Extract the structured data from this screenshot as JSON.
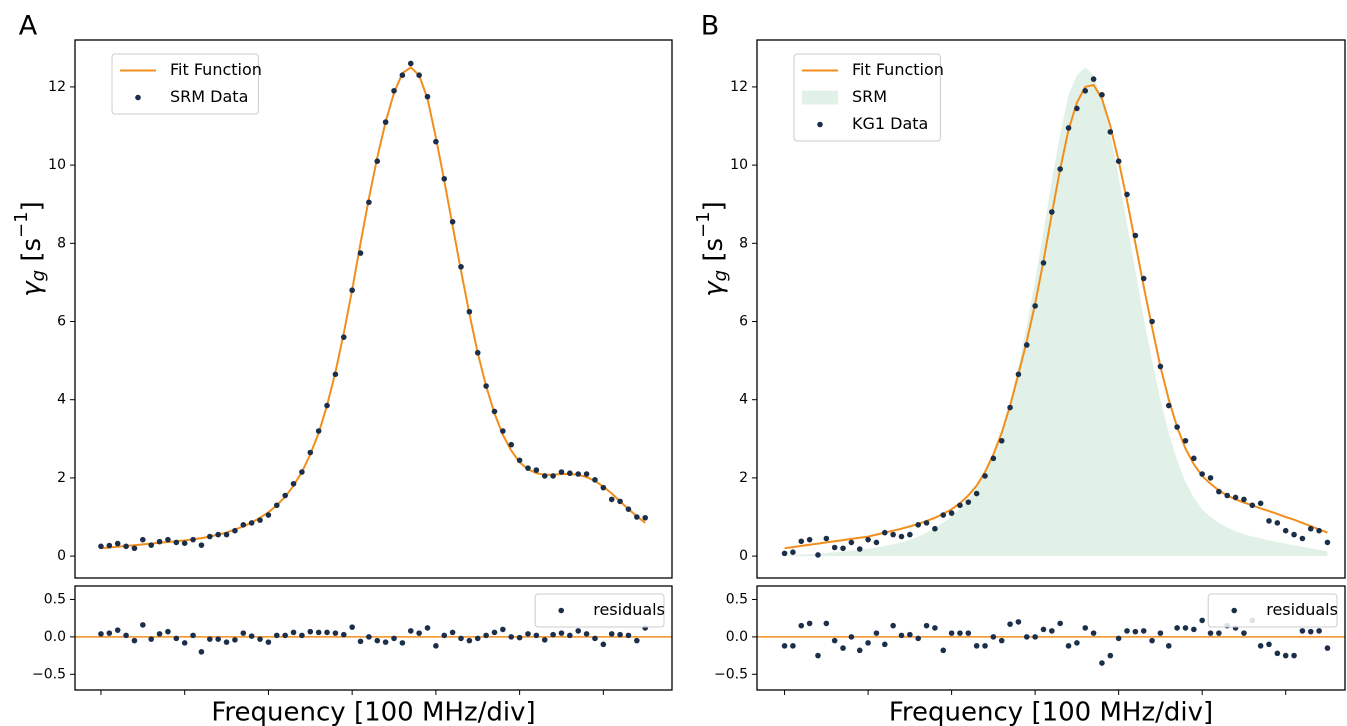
{
  "chart_data": [
    {
      "type": "line",
      "panel_label": "A",
      "ylabel": [
        "γ",
        "g",
        " [s",
        "−1",
        "]"
      ],
      "x": [
        0,
        1,
        2,
        3,
        4,
        5,
        6,
        7,
        8,
        9,
        10,
        11,
        12,
        13,
        14,
        15,
        16,
        17,
        18,
        19,
        20,
        21,
        22,
        23,
        24,
        25,
        26,
        27,
        28,
        29,
        30,
        31,
        32,
        33,
        34,
        35,
        36,
        37,
        38,
        39,
        40,
        41,
        42,
        43,
        44,
        45,
        46,
        47,
        48,
        49,
        50,
        51,
        52,
        53,
        54,
        55,
        56,
        57,
        58,
        59,
        60,
        61,
        62,
        63,
        64,
        65
      ],
      "xlim": [
        -3.1,
        68.2
      ],
      "ylim": [
        -0.56,
        13.2
      ],
      "yticks": [
        0,
        2,
        4,
        6,
        8,
        10,
        12
      ],
      "legend": "upper left",
      "series": [
        {
          "name": "Fit Function",
          "type": "line",
          "color": "#f28e1c",
          "values": [
            0.2,
            0.22,
            0.24,
            0.26,
            0.28,
            0.3,
            0.32,
            0.34,
            0.36,
            0.38,
            0.4,
            0.43,
            0.46,
            0.5,
            0.55,
            0.6,
            0.68,
            0.76,
            0.86,
            0.98,
            1.12,
            1.3,
            1.52,
            1.8,
            2.15,
            2.6,
            3.15,
            3.85,
            4.7,
            5.7,
            6.8,
            8.0,
            9.15,
            10.2,
            11.1,
            11.85,
            12.35,
            12.5,
            12.3,
            11.7,
            10.7,
            9.6,
            8.45,
            7.3,
            6.2,
            5.2,
            4.35,
            3.65,
            3.1,
            2.7,
            2.4,
            2.22,
            2.12,
            2.08,
            2.08,
            2.1,
            2.1,
            2.08,
            2.02,
            1.92,
            1.78,
            1.6,
            1.4,
            1.2,
            1.02,
            0.85
          ]
        },
        {
          "name": "SRM Data",
          "type": "scatter",
          "color": "#1b2f4b",
          "values": [
            0.25,
            0.27,
            0.32,
            0.25,
            0.2,
            0.42,
            0.28,
            0.37,
            0.42,
            0.35,
            0.33,
            0.42,
            0.28,
            0.5,
            0.55,
            0.55,
            0.65,
            0.8,
            0.85,
            0.92,
            1.05,
            1.3,
            1.55,
            1.85,
            2.15,
            2.65,
            3.2,
            3.85,
            4.65,
            5.6,
            6.8,
            7.75,
            9.05,
            10.1,
            11.1,
            11.9,
            12.3,
            12.6,
            12.3,
            11.75,
            10.6,
            9.65,
            8.55,
            7.4,
            6.25,
            5.2,
            4.35,
            3.7,
            3.2,
            2.85,
            2.45,
            2.25,
            2.2,
            2.05,
            2.05,
            2.15,
            2.12,
            2.1,
            2.1,
            1.95,
            1.75,
            1.45,
            1.4,
            1.2,
            1.0,
            0.98
          ]
        }
      ]
    },
    {
      "type": "scatter",
      "xlabel": "Frequency [100 MHz/div]",
      "x": [
        0,
        1,
        2,
        3,
        4,
        5,
        6,
        7,
        8,
        9,
        10,
        11,
        12,
        13,
        14,
        15,
        16,
        17,
        18,
        19,
        20,
        21,
        22,
        23,
        24,
        25,
        26,
        27,
        28,
        29,
        30,
        31,
        32,
        33,
        34,
        35,
        36,
        37,
        38,
        39,
        40,
        41,
        42,
        43,
        44,
        45,
        46,
        47,
        48,
        49,
        50,
        51,
        52,
        53,
        54,
        55,
        56,
        57,
        58,
        59,
        60,
        61,
        62,
        63,
        64,
        65
      ],
      "xlim": [
        -3.1,
        68.2
      ],
      "xticks": [
        0,
        10,
        20,
        30,
        40,
        50,
        60
      ],
      "ylim": [
        -0.71,
        0.68
      ],
      "yticks": [
        {
          "value": -0.5,
          "label": "−0.5"
        },
        {
          "value": 0,
          "label": "0.0"
        },
        {
          "value": 0.5,
          "label": "0.5"
        }
      ],
      "reference_line": 0,
      "reference_color": "#f28e1c",
      "legend": "upper right",
      "series": [
        {
          "name": "residuals",
          "type": "scatter",
          "color": "#1b2f4b",
          "values": [
            0.04,
            0.05,
            0.09,
            0.02,
            -0.05,
            0.16,
            -0.03,
            0.04,
            0.07,
            -0.02,
            -0.08,
            0.02,
            -0.2,
            -0.03,
            -0.03,
            -0.07,
            -0.04,
            0.05,
            0.01,
            -0.03,
            -0.07,
            0.02,
            0.02,
            0.06,
            0.02,
            0.07,
            0.06,
            0.06,
            0.05,
            0.03,
            0.13,
            -0.06,
            0.0,
            -0.05,
            -0.07,
            -0.02,
            -0.08,
            0.08,
            0.05,
            0.12,
            -0.12,
            0.02,
            0.06,
            -0.02,
            -0.05,
            -0.02,
            0.02,
            0.06,
            0.1,
            0.0,
            -0.01,
            0.04,
            0.02,
            -0.04,
            0.03,
            0.05,
            0.02,
            0.08,
            0.04,
            -0.02,
            -0.1,
            0.04,
            0.03,
            0.02,
            -0.05,
            0.12
          ]
        }
      ]
    },
    {
      "type": "line",
      "panel_label": "B",
      "ylabel": [
        "γ",
        "g",
        " [s",
        "−1",
        "]"
      ],
      "x": [
        0,
        1,
        2,
        3,
        4,
        5,
        6,
        7,
        8,
        9,
        10,
        11,
        12,
        13,
        14,
        15,
        16,
        17,
        18,
        19,
        20,
        21,
        22,
        23,
        24,
        25,
        26,
        27,
        28,
        29,
        30,
        31,
        32,
        33,
        34,
        35,
        36,
        37,
        38,
        39,
        40,
        41,
        42,
        43,
        44,
        45,
        46,
        47,
        48,
        49,
        50,
        51,
        52,
        53,
        54,
        55,
        56,
        57,
        58,
        59,
        60,
        61,
        62,
        63,
        64,
        65
      ],
      "xlim": [
        -3.3,
        67.1
      ],
      "ylim": [
        -0.56,
        13.2
      ],
      "yticks": [
        0,
        2,
        4,
        6,
        8,
        10,
        12
      ],
      "legend": "upper left",
      "series": [
        {
          "name": "Fit Function",
          "type": "line",
          "color": "#f28e1c",
          "values": [
            0.2,
            0.23,
            0.26,
            0.29,
            0.32,
            0.35,
            0.38,
            0.41,
            0.44,
            0.47,
            0.5,
            0.55,
            0.6,
            0.65,
            0.7,
            0.76,
            0.82,
            0.9,
            0.98,
            1.08,
            1.2,
            1.35,
            1.55,
            1.8,
            2.15,
            2.6,
            3.15,
            3.85,
            4.65,
            5.5,
            6.45,
            7.55,
            8.75,
            9.9,
            10.9,
            11.6,
            12.0,
            12.05,
            11.7,
            11.0,
            10.1,
            9.1,
            8.0,
            6.9,
            5.85,
            4.85,
            4.0,
            3.3,
            2.75,
            2.35,
            2.05,
            1.85,
            1.68,
            1.55,
            1.45,
            1.37,
            1.3,
            1.22,
            1.15,
            1.08,
            1.0,
            0.93,
            0.85,
            0.77,
            0.68,
            0.6
          ]
        },
        {
          "name": "SRM",
          "type": "area",
          "color": "#e2f1e7",
          "values": [
            0.02,
            0.03,
            0.04,
            0.05,
            0.06,
            0.08,
            0.1,
            0.12,
            0.14,
            0.16,
            0.19,
            0.22,
            0.26,
            0.3,
            0.35,
            0.42,
            0.5,
            0.6,
            0.72,
            0.86,
            1.02,
            1.2,
            1.45,
            1.75,
            2.1,
            2.6,
            3.2,
            3.95,
            4.85,
            5.9,
            7.05,
            8.3,
            9.6,
            10.8,
            11.8,
            12.3,
            12.5,
            12.3,
            11.7,
            10.8,
            9.7,
            8.5,
            7.3,
            6.1,
            5.0,
            4.0,
            3.15,
            2.45,
            1.9,
            1.5,
            1.2,
            1.0,
            0.85,
            0.73,
            0.64,
            0.56,
            0.5,
            0.45,
            0.4,
            0.36,
            0.32,
            0.28,
            0.24,
            0.2,
            0.16,
            0.12
          ]
        },
        {
          "name": "KG1 Data",
          "type": "scatter",
          "color": "#1b2f4b",
          "values": [
            0.07,
            0.1,
            0.38,
            0.42,
            0.03,
            0.45,
            0.22,
            0.2,
            0.35,
            0.18,
            0.42,
            0.35,
            0.6,
            0.55,
            0.5,
            0.55,
            0.8,
            0.85,
            0.7,
            1.05,
            1.1,
            1.3,
            1.38,
            1.6,
            2.05,
            2.5,
            2.95,
            3.8,
            4.65,
            5.4,
            6.4,
            7.5,
            8.8,
            9.9,
            10.95,
            11.45,
            11.9,
            12.2,
            11.8,
            10.85,
            10.1,
            9.25,
            8.2,
            7.1,
            6.0,
            4.85,
            3.85,
            3.3,
            2.95,
            2.5,
            2.1,
            2.0,
            1.65,
            1.55,
            1.5,
            1.45,
            1.3,
            1.35,
            0.9,
            0.85,
            0.65,
            0.55,
            0.45,
            0.7,
            0.65,
            0.35
          ]
        }
      ]
    },
    {
      "type": "scatter",
      "xlabel": "Frequency [100 MHz/div]",
      "x": [
        0,
        1,
        2,
        3,
        4,
        5,
        6,
        7,
        8,
        9,
        10,
        11,
        12,
        13,
        14,
        15,
        16,
        17,
        18,
        19,
        20,
        21,
        22,
        23,
        24,
        25,
        26,
        27,
        28,
        29,
        30,
        31,
        32,
        33,
        34,
        35,
        36,
        37,
        38,
        39,
        40,
        41,
        42,
        43,
        44,
        45,
        46,
        47,
        48,
        49,
        50,
        51,
        52,
        53,
        54,
        55,
        56,
        57,
        58,
        59,
        60,
        61,
        62,
        63,
        64,
        65
      ],
      "xlim": [
        -3.3,
        67.1
      ],
      "xticks": [
        0,
        10,
        20,
        30,
        40,
        50,
        60
      ],
      "ylim": [
        -0.71,
        0.68
      ],
      "yticks": [
        {
          "value": -0.5,
          "label": "−0.5"
        },
        {
          "value": 0,
          "label": "0.0"
        },
        {
          "value": 0.5,
          "label": "0.5"
        }
      ],
      "reference_line": 0,
      "reference_color": "#f28e1c",
      "legend": "upper right",
      "series": [
        {
          "name": "residuals",
          "type": "scatter",
          "color": "#1b2f4b",
          "values": [
            -0.12,
            -0.12,
            0.15,
            0.18,
            -0.25,
            0.18,
            -0.05,
            -0.15,
            0.0,
            -0.18,
            -0.08,
            0.05,
            -0.1,
            0.15,
            0.02,
            0.03,
            -0.02,
            0.15,
            0.12,
            -0.18,
            0.05,
            0.05,
            0.05,
            -0.12,
            -0.12,
            0.0,
            -0.05,
            0.17,
            0.2,
            0.0,
            0.0,
            0.1,
            0.08,
            0.18,
            -0.12,
            -0.08,
            0.12,
            0.05,
            -0.35,
            -0.25,
            -0.02,
            0.08,
            0.07,
            0.08,
            -0.05,
            0.05,
            -0.12,
            0.12,
            0.12,
            0.1,
            0.22,
            0.05,
            0.05,
            0.15,
            0.12,
            0.05,
            0.22,
            -0.12,
            -0.1,
            -0.22,
            -0.25,
            -0.25,
            0.08,
            0.07,
            0.08,
            -0.15
          ]
        }
      ]
    }
  ]
}
